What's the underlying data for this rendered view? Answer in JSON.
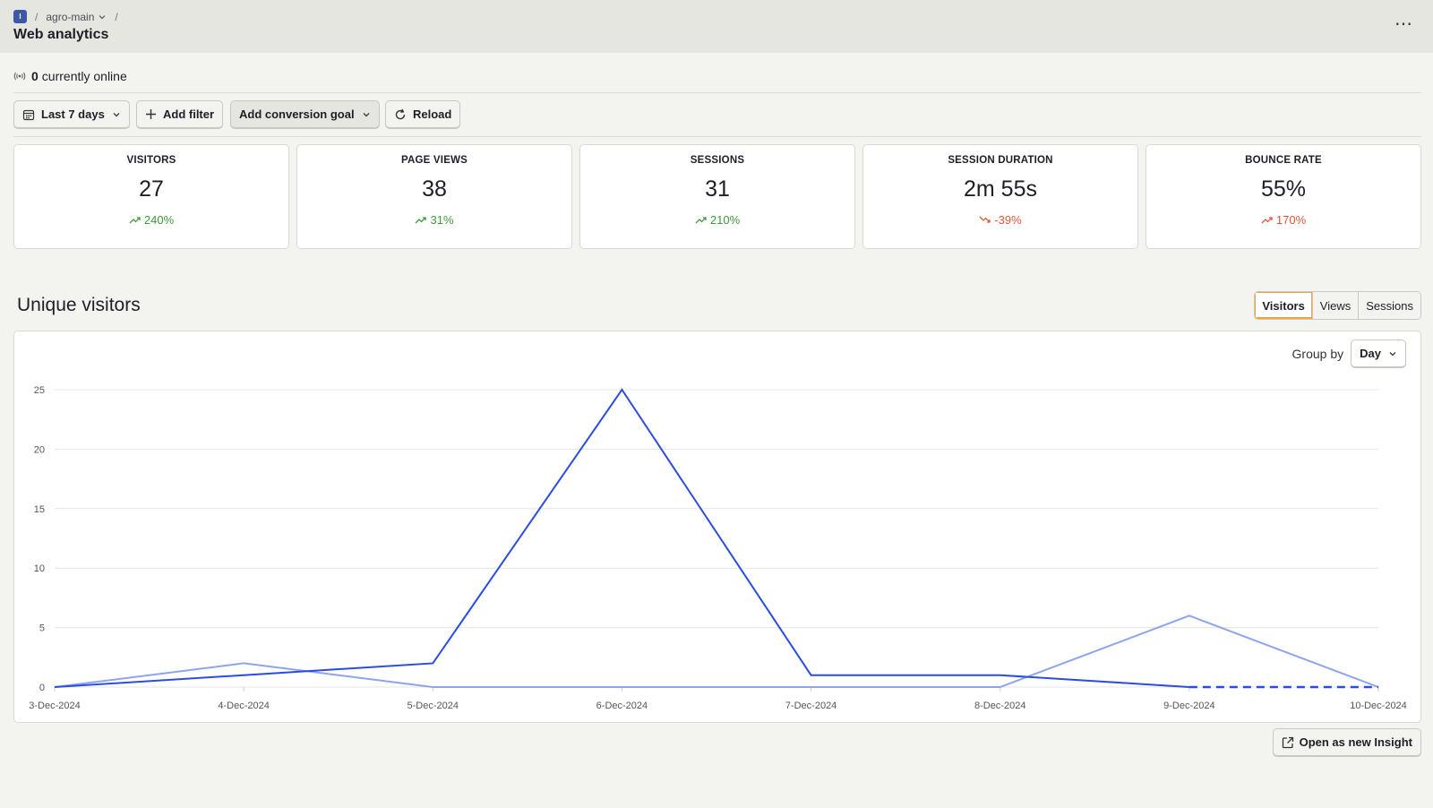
{
  "breadcrumb": {
    "project_initial": "I",
    "project": "agro-main"
  },
  "page_title": "Web analytics",
  "online": {
    "count": "0",
    "label": "currently online"
  },
  "toolbar": {
    "date_range": "Last 7 days",
    "add_filter": "Add filter",
    "conversion_goal": "Add conversion goal",
    "reload": "Reload"
  },
  "stats": [
    {
      "label": "VISITORS",
      "value": "27",
      "change": "240%",
      "trend": "up"
    },
    {
      "label": "PAGE VIEWS",
      "value": "38",
      "change": "31%",
      "trend": "up"
    },
    {
      "label": "SESSIONS",
      "value": "31",
      "change": "210%",
      "trend": "up"
    },
    {
      "label": "SESSION DURATION",
      "value": "2m 55s",
      "change": "-39%",
      "trend": "down"
    },
    {
      "label": "BOUNCE RATE",
      "value": "55%",
      "change": "170%",
      "trend": "up"
    }
  ],
  "colors": {
    "positive": "#3f9b38",
    "negative": "#e0593a",
    "accent": "#f2a43b",
    "series_current": "#2b4ce0",
    "series_previous": "#8ea4ee"
  },
  "section": {
    "title": "Unique visitors",
    "tabs": [
      "Visitors",
      "Views",
      "Sessions"
    ],
    "active_tab": "Visitors",
    "group_by_label": "Group by",
    "group_by_value": "Day"
  },
  "chart_data": {
    "type": "line",
    "x": [
      "3-Dec-2024",
      "4-Dec-2024",
      "5-Dec-2024",
      "6-Dec-2024",
      "7-Dec-2024",
      "8-Dec-2024",
      "9-Dec-2024",
      "10-Dec-2024"
    ],
    "series": [
      {
        "values": [
          0,
          1,
          2,
          25,
          1,
          1,
          0,
          0
        ],
        "style": "solid, last segment dashed"
      },
      {
        "values": [
          0,
          2,
          0,
          0,
          0,
          0,
          6,
          0
        ],
        "style": "light"
      }
    ],
    "yticks": [
      0,
      5,
      10,
      15,
      20,
      25
    ],
    "ylim": [
      0,
      25
    ],
    "grid": true,
    "legend": "none"
  },
  "open_insight": "Open as new Insight"
}
